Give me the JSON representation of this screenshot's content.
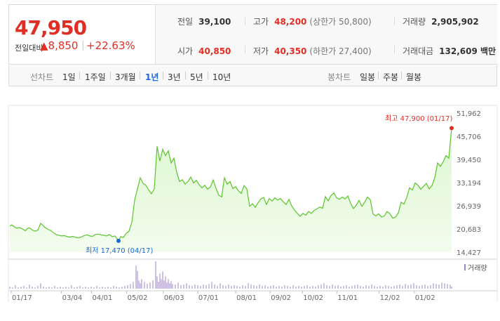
{
  "quote": {
    "price": "47,950",
    "change_label": "전일대비",
    "change_abs": "▲8,850",
    "change_pct": "+22.63%",
    "prev_close_label": "전일",
    "prev_close": "39,100",
    "high_label": "고가",
    "high": "48,200",
    "upper_limit": "(상한가 50,800)",
    "volume_label": "거래량",
    "volume": "2,905,902",
    "open_label": "시가",
    "open": "40,850",
    "low_label": "저가",
    "low": "40,350",
    "lower_limit": "(하한가 27,400)",
    "amount_label": "거래대금",
    "amount": "132,609 백만"
  },
  "tabs": {
    "line_label": "선차트",
    "line_periods": [
      "1일",
      "1주일",
      "3개월",
      "1년",
      "3년",
      "5년",
      "10년"
    ],
    "active": "1년",
    "candle_label": "봉차트",
    "candle_periods": [
      "일봉",
      "주봉",
      "월봉"
    ]
  },
  "colors": {
    "up": "#e12e25",
    "down": "#1a67d8",
    "line": "#5ac52c",
    "area": "#dcf7cf",
    "volume": "#9b84c9"
  },
  "chart_data": {
    "type": "area",
    "x_ticks": [
      "01/17",
      "03/04",
      "04/01",
      "05/02",
      "06/03",
      "07/01",
      "08/01",
      "09/02",
      "10/02",
      "11/01",
      "12/02",
      "01/02"
    ],
    "y_ticks": [
      "51,962",
      "45,706",
      "39,450",
      "33,194",
      "26,939",
      "20,683",
      "14,427"
    ],
    "ylim": [
      14427,
      51962
    ],
    "max_label": "최고 47,900 (01/17)",
    "min_label": "최저 17,470 (04/17)",
    "volume_legend": "거래량",
    "price_series": [
      [
        0,
        21500
      ],
      [
        3,
        21800
      ],
      [
        6,
        21300
      ],
      [
        10,
        20900
      ],
      [
        14,
        21100
      ],
      [
        18,
        20700
      ],
      [
        22,
        20200
      ],
      [
        25,
        20800
      ],
      [
        28,
        21000
      ],
      [
        32,
        20400
      ],
      [
        36,
        20100
      ],
      [
        40,
        20400
      ],
      [
        44,
        22200
      ],
      [
        47,
        21700
      ],
      [
        50,
        21100
      ],
      [
        54,
        20600
      ],
      [
        58,
        20300
      ],
      [
        62,
        19700
      ],
      [
        66,
        19200
      ],
      [
        70,
        19000
      ],
      [
        74,
        18800
      ],
      [
        78,
        18900
      ],
      [
        82,
        18600
      ],
      [
        86,
        18500
      ],
      [
        90,
        18700
      ],
      [
        94,
        18400
      ],
      [
        98,
        18300
      ],
      [
        102,
        18500
      ],
      [
        106,
        18900
      ],
      [
        110,
        19100
      ],
      [
        114,
        18800
      ],
      [
        118,
        18700
      ],
      [
        122,
        19200
      ],
      [
        126,
        19300
      ],
      [
        130,
        19100
      ],
      [
        134,
        19000
      ],
      [
        138,
        18800
      ],
      [
        142,
        19200
      ],
      [
        146,
        18600
      ],
      [
        150,
        18800
      ],
      [
        155,
        17470
      ],
      [
        158,
        18600
      ],
      [
        162,
        18400
      ],
      [
        166,
        19500
      ],
      [
        170,
        20100
      ],
      [
        174,
        22500
      ],
      [
        178,
        28500
      ],
      [
        182,
        31500
      ],
      [
        186,
        34500
      ],
      [
        190,
        33000
      ],
      [
        194,
        32500
      ],
      [
        198,
        31200
      ],
      [
        202,
        30200
      ],
      [
        206,
        31500
      ],
      [
        210,
        43000
      ],
      [
        214,
        39000
      ],
      [
        218,
        42200
      ],
      [
        222,
        40500
      ],
      [
        226,
        41800
      ],
      [
        230,
        38500
      ],
      [
        234,
        39800
      ],
      [
        238,
        36000
      ],
      [
        242,
        33500
      ],
      [
        246,
        34000
      ],
      [
        250,
        32800
      ],
      [
        254,
        33500
      ],
      [
        258,
        34700
      ],
      [
        262,
        33100
      ],
      [
        266,
        33800
      ],
      [
        270,
        32600
      ],
      [
        274,
        31800
      ],
      [
        278,
        32500
      ],
      [
        282,
        31400
      ],
      [
        286,
        32000
      ],
      [
        290,
        33900
      ],
      [
        294,
        31700
      ],
      [
        298,
        29800
      ],
      [
        302,
        29300
      ],
      [
        306,
        34500
      ],
      [
        310,
        32800
      ],
      [
        314,
        33500
      ],
      [
        318,
        31600
      ],
      [
        322,
        32100
      ],
      [
        326,
        31000
      ],
      [
        330,
        30300
      ],
      [
        334,
        32400
      ],
      [
        338,
        31500
      ],
      [
        342,
        26800
      ],
      [
        346,
        27500
      ],
      [
        350,
        26500
      ],
      [
        354,
        27800
      ],
      [
        358,
        28800
      ],
      [
        362,
        29200
      ],
      [
        366,
        27300
      ],
      [
        370,
        28900
      ],
      [
        374,
        28200
      ],
      [
        378,
        29100
      ],
      [
        382,
        28500
      ],
      [
        386,
        28900
      ],
      [
        390,
        28000
      ],
      [
        394,
        27300
      ],
      [
        398,
        28700
      ],
      [
        402,
        26900
      ],
      [
        406,
        25800
      ],
      [
        410,
        24900
      ],
      [
        414,
        24100
      ],
      [
        418,
        24900
      ],
      [
        422,
        24400
      ],
      [
        426,
        25400
      ],
      [
        430,
        24900
      ],
      [
        434,
        25700
      ],
      [
        438,
        26100
      ],
      [
        442,
        26600
      ],
      [
        446,
        26300
      ],
      [
        450,
        29400
      ],
      [
        454,
        28300
      ],
      [
        458,
        29700
      ],
      [
        462,
        30400
      ],
      [
        466,
        29100
      ],
      [
        470,
        28700
      ],
      [
        474,
        29300
      ],
      [
        478,
        28800
      ],
      [
        482,
        29600
      ],
      [
        486,
        27600
      ],
      [
        490,
        26200
      ],
      [
        494,
        27100
      ],
      [
        498,
        28400
      ],
      [
        502,
        26800
      ],
      [
        506,
        27900
      ],
      [
        510,
        29300
      ],
      [
        514,
        28600
      ],
      [
        518,
        24700
      ],
      [
        522,
        24200
      ],
      [
        526,
        24800
      ],
      [
        530,
        23900
      ],
      [
        534,
        24200
      ],
      [
        538,
        25400
      ],
      [
        542,
        24800
      ],
      [
        546,
        23600
      ],
      [
        550,
        23900
      ],
      [
        554,
        25000
      ],
      [
        558,
        27900
      ],
      [
        562,
        27400
      ],
      [
        566,
        29200
      ],
      [
        570,
        31800
      ],
      [
        574,
        31200
      ],
      [
        578,
        33100
      ],
      [
        582,
        32500
      ],
      [
        586,
        31400
      ],
      [
        590,
        32200
      ],
      [
        594,
        33000
      ],
      [
        598,
        31500
      ],
      [
        602,
        32400
      ],
      [
        606,
        34500
      ],
      [
        610,
        38500
      ],
      [
        614,
        37600
      ],
      [
        618,
        38800
      ],
      [
        622,
        40500
      ],
      [
        626,
        39800
      ],
      [
        630,
        47900
      ]
    ],
    "volume_series": [
      [
        0,
        3
      ],
      [
        4,
        2
      ],
      [
        8,
        5
      ],
      [
        12,
        2
      ],
      [
        16,
        3
      ],
      [
        20,
        4
      ],
      [
        24,
        2
      ],
      [
        28,
        6
      ],
      [
        32,
        3
      ],
      [
        36,
        2
      ],
      [
        40,
        4
      ],
      [
        44,
        8
      ],
      [
        48,
        3
      ],
      [
        52,
        2
      ],
      [
        56,
        3
      ],
      [
        60,
        2
      ],
      [
        64,
        4
      ],
      [
        68,
        2
      ],
      [
        72,
        3
      ],
      [
        76,
        2
      ],
      [
        80,
        3
      ],
      [
        84,
        2
      ],
      [
        88,
        5
      ],
      [
        92,
        2
      ],
      [
        96,
        3
      ],
      [
        100,
        4
      ],
      [
        104,
        2
      ],
      [
        108,
        3
      ],
      [
        112,
        2
      ],
      [
        116,
        3
      ],
      [
        120,
        2
      ],
      [
        124,
        4
      ],
      [
        128,
        2
      ],
      [
        132,
        3
      ],
      [
        136,
        2
      ],
      [
        140,
        3
      ],
      [
        144,
        2
      ],
      [
        148,
        4
      ],
      [
        152,
        3
      ],
      [
        156,
        2
      ],
      [
        160,
        3
      ],
      [
        164,
        4
      ],
      [
        168,
        5
      ],
      [
        172,
        7
      ],
      [
        176,
        10
      ],
      [
        180,
        34
      ],
      [
        182,
        26
      ],
      [
        184,
        12
      ],
      [
        186,
        8
      ],
      [
        188,
        14
      ],
      [
        192,
        10
      ],
      [
        196,
        7
      ],
      [
        200,
        9
      ],
      [
        204,
        12
      ],
      [
        208,
        40
      ],
      [
        210,
        18
      ],
      [
        212,
        10
      ],
      [
        214,
        22
      ],
      [
        216,
        14
      ],
      [
        218,
        25
      ],
      [
        220,
        12
      ],
      [
        222,
        18
      ],
      [
        224,
        9
      ],
      [
        226,
        14
      ],
      [
        228,
        8
      ],
      [
        230,
        11
      ],
      [
        232,
        7
      ],
      [
        236,
        6
      ],
      [
        240,
        9
      ],
      [
        244,
        5
      ],
      [
        248,
        6
      ],
      [
        252,
        8
      ],
      [
        256,
        5
      ],
      [
        260,
        4
      ],
      [
        264,
        6
      ],
      [
        268,
        5
      ],
      [
        272,
        4
      ],
      [
        276,
        6
      ],
      [
        280,
        5
      ],
      [
        284,
        7
      ],
      [
        288,
        10
      ],
      [
        292,
        6
      ],
      [
        296,
        4
      ],
      [
        300,
        8
      ],
      [
        304,
        5
      ],
      [
        308,
        4
      ],
      [
        312,
        6
      ],
      [
        316,
        4
      ],
      [
        320,
        5
      ],
      [
        324,
        4
      ],
      [
        328,
        3
      ],
      [
        332,
        5
      ],
      [
        336,
        4
      ],
      [
        340,
        8
      ],
      [
        344,
        6
      ],
      [
        348,
        5
      ],
      [
        352,
        4
      ],
      [
        356,
        6
      ],
      [
        360,
        4
      ],
      [
        364,
        5
      ],
      [
        368,
        3
      ],
      [
        372,
        4
      ],
      [
        376,
        5
      ],
      [
        380,
        3
      ],
      [
        384,
        4
      ],
      [
        388,
        3
      ],
      [
        392,
        5
      ],
      [
        396,
        4
      ],
      [
        400,
        3
      ],
      [
        404,
        5
      ],
      [
        408,
        3
      ],
      [
        412,
        4
      ],
      [
        416,
        3
      ],
      [
        420,
        4
      ],
      [
        424,
        5
      ],
      [
        428,
        3
      ],
      [
        432,
        4
      ],
      [
        436,
        3
      ],
      [
        440,
        5
      ],
      [
        444,
        6
      ],
      [
        448,
        8
      ],
      [
        452,
        5
      ],
      [
        456,
        4
      ],
      [
        460,
        6
      ],
      [
        464,
        4
      ],
      [
        468,
        5
      ],
      [
        472,
        3
      ],
      [
        476,
        4
      ],
      [
        480,
        5
      ],
      [
        484,
        3
      ],
      [
        488,
        4
      ],
      [
        492,
        5
      ],
      [
        496,
        6
      ],
      [
        500,
        4
      ],
      [
        504,
        3
      ],
      [
        508,
        5
      ],
      [
        512,
        4
      ],
      [
        516,
        6
      ],
      [
        520,
        4
      ],
      [
        524,
        3
      ],
      [
        528,
        4
      ],
      [
        532,
        3
      ],
      [
        536,
        5
      ],
      [
        540,
        4
      ],
      [
        544,
        3
      ],
      [
        548,
        4
      ],
      [
        552,
        5
      ],
      [
        556,
        6
      ],
      [
        560,
        4
      ],
      [
        564,
        7
      ],
      [
        568,
        5
      ],
      [
        572,
        6
      ],
      [
        576,
        8
      ],
      [
        580,
        5
      ],
      [
        584,
        4
      ],
      [
        588,
        5
      ],
      [
        592,
        6
      ],
      [
        596,
        4
      ],
      [
        600,
        5
      ],
      [
        604,
        8
      ],
      [
        608,
        7
      ],
      [
        612,
        6
      ],
      [
        616,
        9
      ],
      [
        620,
        8
      ],
      [
        624,
        7
      ],
      [
        628,
        6
      ],
      [
        630,
        3
      ]
    ]
  }
}
